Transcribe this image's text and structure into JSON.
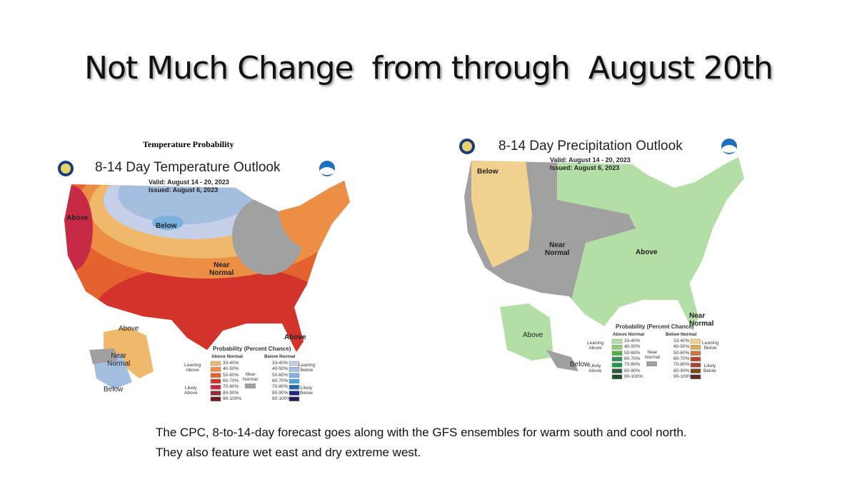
{
  "title": "Not Much Change  from through  August 20th",
  "temperature_map": {
    "header": "Temperature Probability",
    "title": "8-14 Day Temperature Outlook",
    "valid": "Valid:  August 14 - 20, 2023",
    "issued": "Issued:  August 6, 2023",
    "region_labels": [
      "Above",
      "Below",
      "Near\nNormal",
      "Above",
      "Above",
      "Near\nNormal",
      "Below"
    ],
    "legend": {
      "title": "Probability (Percent Chance)",
      "above_header": "Above Normal",
      "below_header": "Below Normal",
      "leaning_above": "Leaning\nAbove",
      "likely_above": "Likely\nAbove",
      "leaning_below": "Leaning\nBelow",
      "likely_below": "Likely\nBelow",
      "near_normal": "Near\nNormal",
      "ranges": [
        "33-40%",
        "40-50%",
        "50-60%",
        "60-70%",
        "70-80%",
        "80-90%",
        "90-100%"
      ],
      "above_colors": [
        "#f0b86a",
        "#ec8f45",
        "#e4622d",
        "#d2332a",
        "#c62a45",
        "#8f3033",
        "#6b1a1f"
      ],
      "below_colors": [
        "#c6cfe8",
        "#a4bee0",
        "#79b2e0",
        "#45a6e0",
        "#1f66b0",
        "#1d2a85",
        "#22205a"
      ],
      "near_color": "#a0a0a0"
    }
  },
  "precipitation_map": {
    "title": "8-14 Day Precipitation Outlook",
    "valid": "Valid:  August 14 - 20, 2023",
    "issued": "Issued:  August 6, 2023",
    "region_labels": [
      "Below",
      "Near\nNormal",
      "Above",
      "Near\nNormal",
      "Above",
      "Below"
    ],
    "legend": {
      "title": "Probability (Percent Chance)",
      "above_header": "Above Normal",
      "below_header": "Below Normal",
      "leaning_above": "Leaning\nAbove",
      "likely_above": "Likely\nAbove",
      "leaning_below": "Leaning\nBelow",
      "likely_below": "Likely\nBelow",
      "near_normal": "Near\nNormal",
      "ranges": [
        "33-40%",
        "40-50%",
        "50-60%",
        "60-70%",
        "70-80%",
        "80-90%",
        "90-100%"
      ],
      "above_colors": [
        "#b3dfa6",
        "#8fcf7b",
        "#4fb23f",
        "#3b8a5a",
        "#1f9a4a",
        "#2f5a3a",
        "#234d1c"
      ],
      "below_colors": [
        "#f0d28e",
        "#dcae55",
        "#c8783a",
        "#b24a33",
        "#a2473a",
        "#7a4a12",
        "#5a2a20"
      ],
      "near_color": "#a0a0a0"
    }
  },
  "caption": [
    "The CPC, 8-to-14-day forecast goes along with the GFS ensembles for warm south and cool north.",
    "They also feature wet east and dry extreme west."
  ]
}
